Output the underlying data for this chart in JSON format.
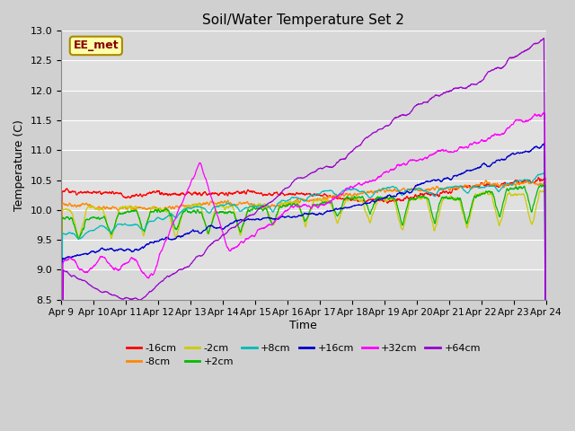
{
  "title": "Soil/Water Temperature Set 2",
  "xlabel": "Time",
  "ylabel": "Temperature (C)",
  "ylim": [
    8.5,
    13.0
  ],
  "xlim": [
    0,
    15
  ],
  "plot_bg_color": "#dddddd",
  "grid_color": "#cccccc",
  "band_colors": [
    "#d8d8d8",
    "#e8e8e8"
  ],
  "series": [
    {
      "label": "-16cm",
      "color": "#ff0000"
    },
    {
      "label": "-8cm",
      "color": "#ff8800"
    },
    {
      "label": "-2cm",
      "color": "#cccc00"
    },
    {
      "label": "+2cm",
      "color": "#00bb00"
    },
    {
      "label": "+8cm",
      "color": "#00bbbb"
    },
    {
      "label": "+16cm",
      "color": "#0000cc"
    },
    {
      "label": "+32cm",
      "color": "#ff00ff"
    },
    {
      "label": "+64cm",
      "color": "#9900cc"
    }
  ],
  "xtick_labels": [
    "Apr 9",
    "Apr 10",
    "Apr 11",
    "Apr 12",
    "Apr 13",
    "Apr 14",
    "Apr 15",
    "Apr 16",
    "Apr 17",
    "Apr 18",
    "Apr 19",
    "Apr 20",
    "Apr 21",
    "Apr 22",
    "Apr 23",
    "Apr 24"
  ],
  "ytick_labels": [
    "8.5",
    "9.0",
    "9.5",
    "10.0",
    "10.5",
    "11.0",
    "11.5",
    "12.0",
    "12.5",
    "13.0"
  ],
  "ytick_values": [
    8.5,
    9.0,
    9.5,
    10.0,
    10.5,
    11.0,
    11.5,
    12.0,
    12.5,
    13.0
  ],
  "annotation_text": "EE_met",
  "annotation_bg": "#ffffaa",
  "annotation_border": "#aa8800",
  "annotation_text_color": "#880000"
}
